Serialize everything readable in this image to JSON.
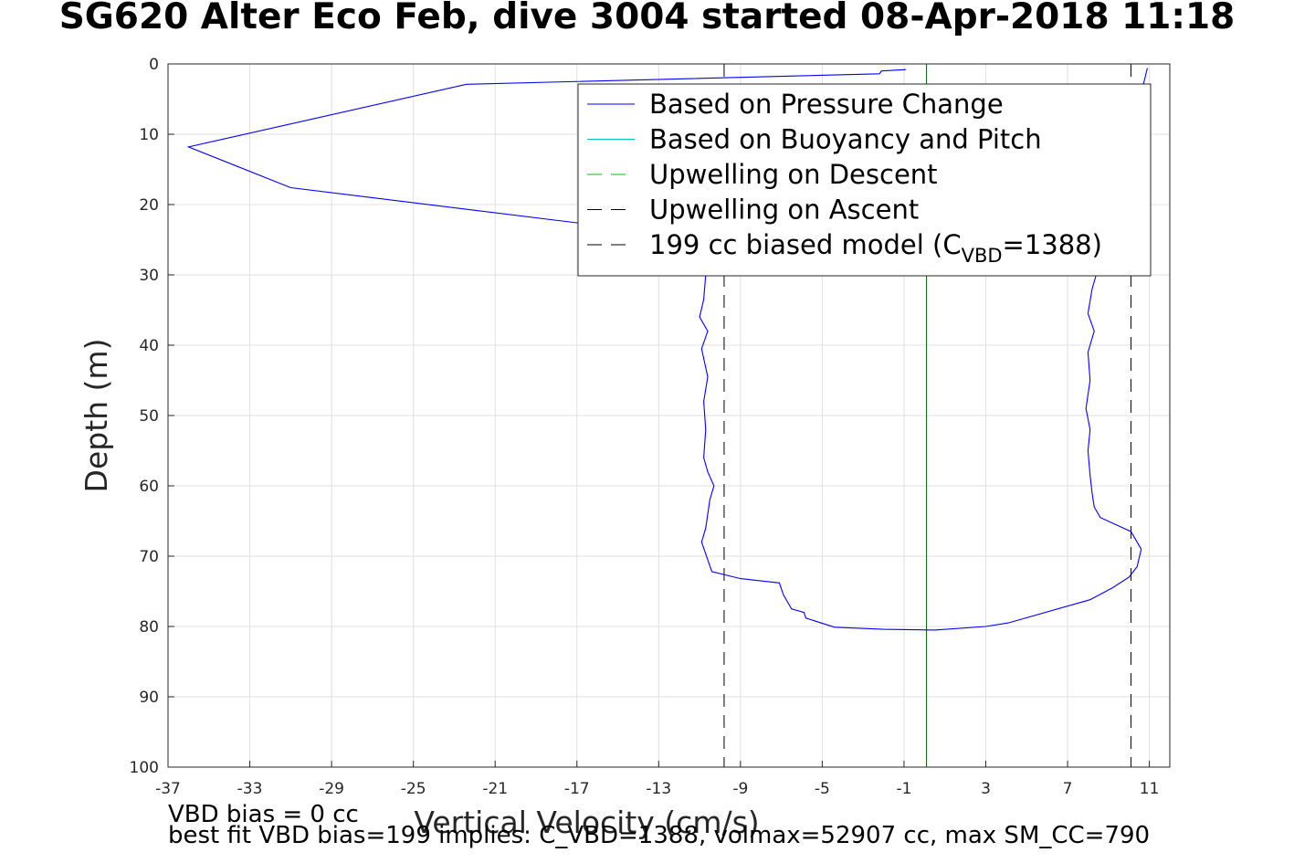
{
  "chart_data": {
    "type": "line",
    "title": "SG620 Alter Eco Feb, dive 3004 started 08-Apr-2018 11:18",
    "xlabel": "Vertical Velocity (cm/s)",
    "ylabel": "Depth (m)",
    "xlim": [
      -37,
      12
    ],
    "ylim": [
      0,
      100
    ],
    "y_reversed": true,
    "grid": true,
    "x_ticks": [
      -37,
      -33,
      -29,
      -25,
      -21,
      -17,
      -13,
      -9,
      -5,
      -1,
      3,
      7,
      11
    ],
    "y_ticks": [
      0,
      10,
      20,
      30,
      40,
      50,
      60,
      70,
      80,
      90,
      100
    ],
    "legend_position": "top-right",
    "footnotes": [
      "VBD bias = 0 cc",
      "best fit VBD bias=199 implies: C_VBD=1388, volmax=52907 cc, max SM_CC=790"
    ],
    "series": [
      {
        "name": "Based on Pressure Change",
        "color": "#0000ff",
        "style": "solid",
        "segments": [
          [
            [
              -0.9,
              0.8
            ],
            [
              -2.1,
              1.0
            ],
            [
              -2.2,
              1.4
            ],
            [
              -22.4,
              2.9
            ],
            [
              -36.0,
              11.8
            ],
            [
              -31.0,
              17.6
            ],
            [
              -17.0,
              22.6
            ],
            [
              -12.0,
              24.5
            ],
            [
              -11.0,
              27.0
            ],
            [
              -10.7,
              30.0
            ],
            [
              -10.8,
              33.5
            ],
            [
              -11.0,
              36.0
            ],
            [
              -10.6,
              38.0
            ],
            [
              -10.9,
              40.5
            ],
            [
              -10.6,
              44.5
            ],
            [
              -10.8,
              48.0
            ],
            [
              -10.7,
              52.0
            ],
            [
              -10.8,
              56.0
            ],
            [
              -10.6,
              58.0
            ],
            [
              -10.3,
              60.0
            ],
            [
              -10.5,
              62.0
            ],
            [
              -10.7,
              66.0
            ],
            [
              -10.9,
              68.0
            ],
            [
              -10.4,
              72.2
            ],
            [
              -9.0,
              73.2
            ],
            [
              -7.1,
              73.8
            ],
            [
              -6.9,
              75.5
            ],
            [
              -6.7,
              76.5
            ],
            [
              -6.5,
              77.5
            ],
            [
              -5.9,
              78.0
            ],
            [
              -5.8,
              78.8
            ],
            [
              -4.4,
              80.1
            ],
            [
              -2.0,
              80.4
            ],
            [
              0.5,
              80.5
            ],
            [
              3.0,
              80.0
            ],
            [
              4.1,
              79.5
            ],
            [
              8.1,
              76.2
            ],
            [
              9.2,
              74.5
            ],
            [
              10.0,
              73.0
            ],
            [
              10.4,
              71.5
            ],
            [
              10.6,
              69.0
            ],
            [
              10.1,
              66.5
            ],
            [
              8.6,
              64.5
            ],
            [
              8.3,
              63.0
            ],
            [
              8.2,
              61.0
            ],
            [
              8.1,
              58.5
            ],
            [
              8.0,
              55.0
            ],
            [
              8.1,
              52.0
            ],
            [
              7.9,
              49.0
            ],
            [
              8.1,
              45.0
            ],
            [
              8.0,
              41.0
            ],
            [
              8.3,
              38.0
            ],
            [
              8.0,
              35.5
            ],
            [
              8.2,
              32.0
            ],
            [
              8.6,
              28.0
            ],
            [
              9.0,
              25.0
            ],
            [
              9.8,
              20.0
            ],
            [
              10.1,
              16.0
            ],
            [
              10.3,
              10.0
            ],
            [
              10.5,
              6.0
            ],
            [
              10.7,
              3.0
            ],
            [
              10.9,
              0.6
            ]
          ]
        ]
      },
      {
        "name": "Based on Buoyancy and Pitch",
        "color": "#00c0c0",
        "style": "solid",
        "segments": []
      },
      {
        "name": "Upwelling on Descent",
        "color": "#00c000",
        "style": "dashed",
        "segments": []
      },
      {
        "name": "Upwelling on Ascent",
        "color": "#000000",
        "style": "dashed",
        "segments": []
      },
      {
        "name": "199 cc biased model (C_VBD=1388)",
        "color": "#000000",
        "style": "dashed",
        "segments": []
      }
    ],
    "reference_lines": [
      {
        "x": 0.1,
        "color": "#006400",
        "style": "solid"
      },
      {
        "x": -9.8,
        "color": "#000000",
        "style": "dashed"
      },
      {
        "x": 10.1,
        "color": "#000000",
        "style": "dashed"
      }
    ],
    "legend_entries": [
      {
        "label_main": "Based on Pressure Change",
        "sub": "",
        "after": "",
        "color": "#0000ff",
        "dashed": false
      },
      {
        "label_main": "Based on Buoyancy and Pitch",
        "sub": "",
        "after": "",
        "color": "#00c0c0",
        "dashed": false
      },
      {
        "label_main": "Upwelling on Descent",
        "sub": "",
        "after": "",
        "color": "#00c000",
        "dashed": true
      },
      {
        "label_main": "Upwelling on Ascent",
        "sub": "",
        "after": "",
        "color": "#000000",
        "dashed": true
      },
      {
        "label_main": "199 cc biased model (C",
        "sub": "VBD",
        "after": "=1388)",
        "color": "#000000",
        "dashed": true
      }
    ]
  }
}
